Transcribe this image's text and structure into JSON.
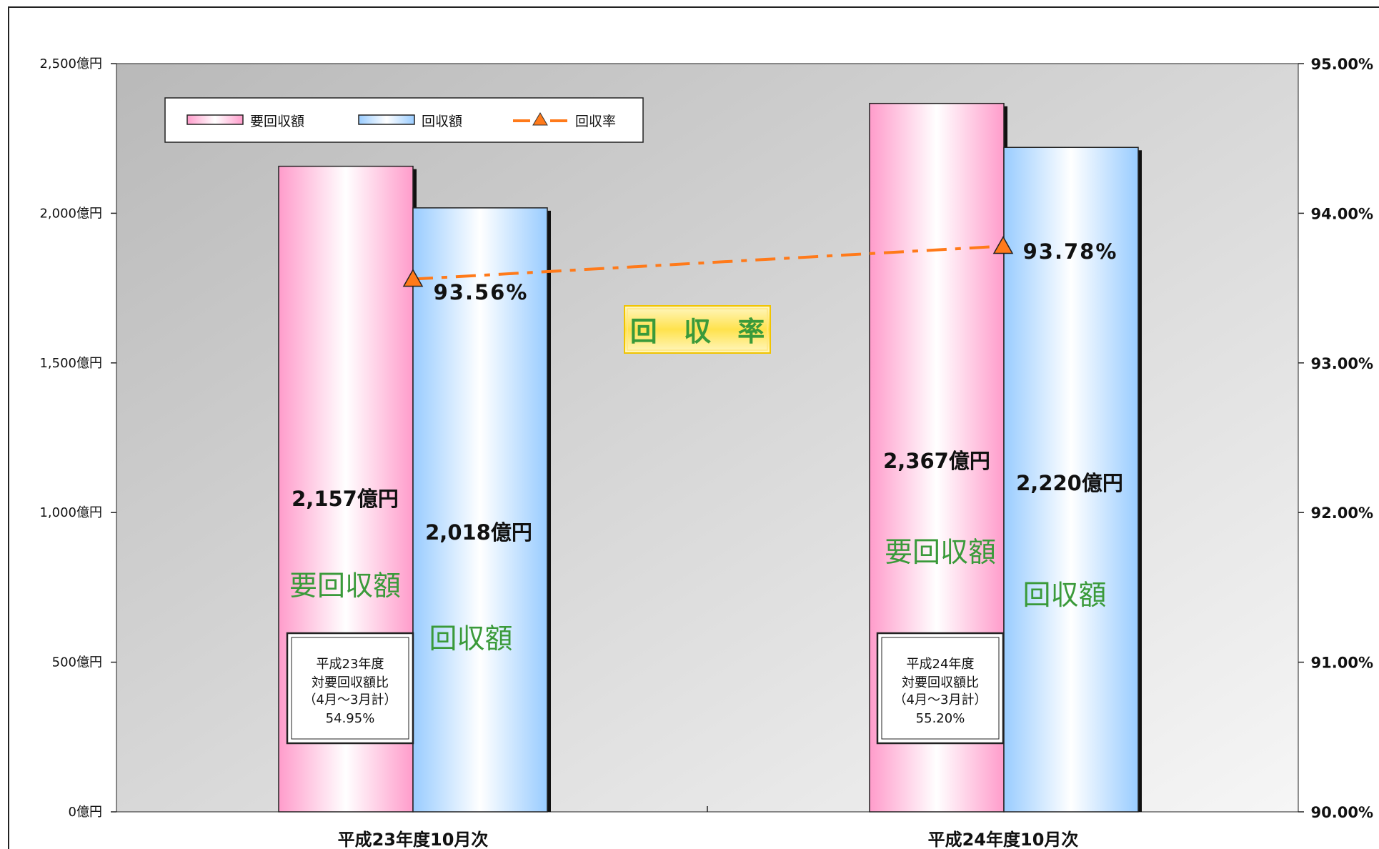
{
  "chart_data": {
    "type": "bar",
    "categories": [
      "平成23年度10月次",
      "平成24年度10月次"
    ],
    "series": [
      {
        "name": "要回収額",
        "values": [
          2157,
          2367
        ],
        "value_labels": [
          "2,157億円",
          "2,367億円"
        ],
        "inner_label": "要回収額",
        "color": "#ff9ccb"
      },
      {
        "name": "回収額",
        "values": [
          2018,
          2220
        ],
        "value_labels": [
          "2,018億円",
          "2,220億円"
        ],
        "inner_label": "回収額",
        "color": "#99ccff"
      }
    ],
    "rate_series": {
      "name": "回収率",
      "values": [
        93.56,
        93.78
      ],
      "value_labels": [
        "93.56%",
        "93.78%"
      ],
      "color": "#ff7a1a",
      "marker": "triangle"
    },
    "y_left": {
      "ylim": [
        0,
        2500
      ],
      "ticks": [
        0,
        500,
        1000,
        1500,
        2000,
        2500
      ],
      "tick_labels": [
        "0億円",
        "500億円",
        "1,000億円",
        "1,500億円",
        "2,000億円",
        "2,500億円"
      ]
    },
    "y_right": {
      "ylim": [
        90,
        95
      ],
      "ticks": [
        90,
        91,
        92,
        93,
        94,
        95
      ],
      "tick_labels": [
        "90.00%",
        "91.00%",
        "92.00%",
        "93.00%",
        "94.00%",
        "95.00%"
      ]
    },
    "legend": {
      "placement": "top-left",
      "entries": [
        "要回収額",
        "回収額",
        "回収率"
      ]
    },
    "notes": [
      [
        "平成23年度",
        "対要回収額比",
        "（4月～3月計）",
        "54.95%"
      ],
      [
        "平成24年度",
        "対要回収額比",
        "（4月～3月計）",
        "55.20%"
      ]
    ],
    "badge_label": "回 収 率",
    "plot_background": [
      "#b9b9b9",
      "#f4f4f4"
    ],
    "grid": false
  }
}
